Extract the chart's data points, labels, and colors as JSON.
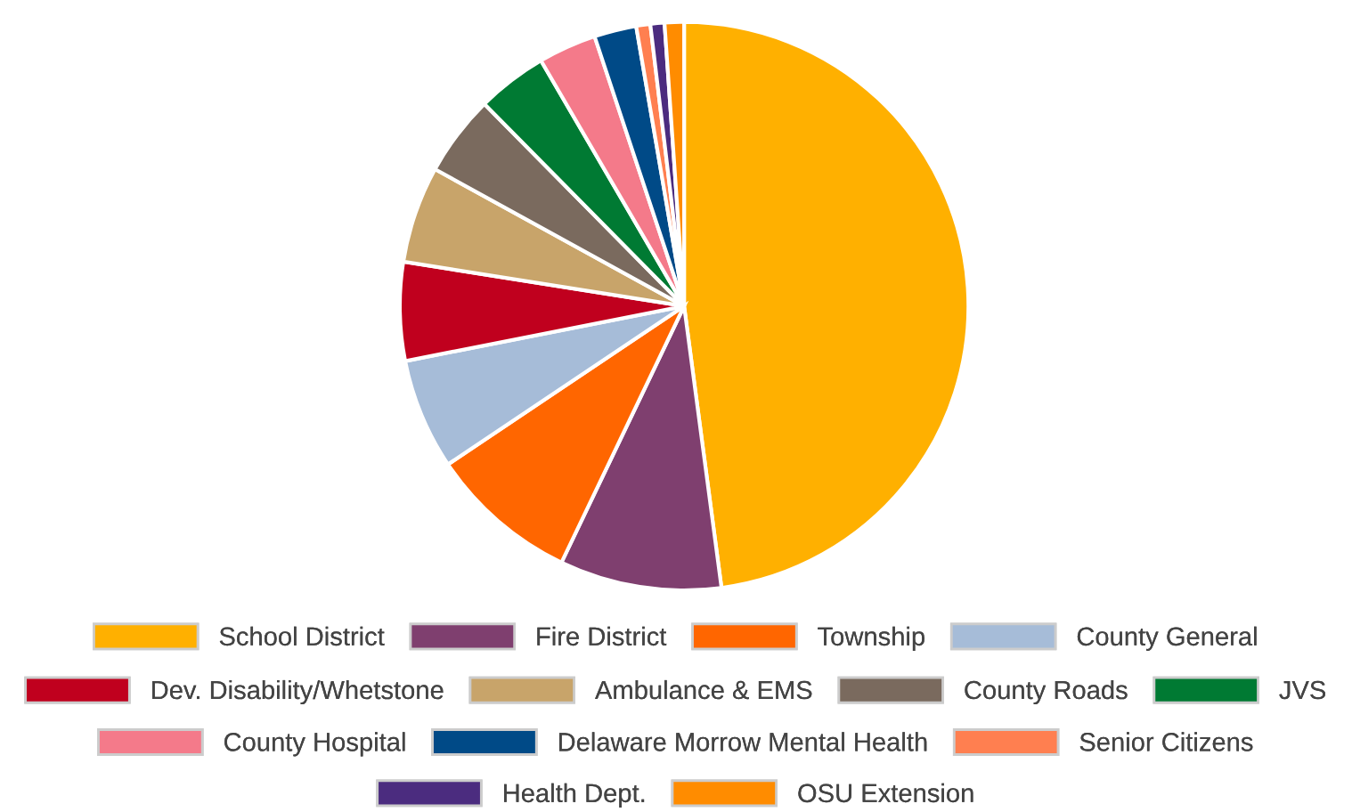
{
  "chart_data": {
    "type": "pie",
    "categories": [
      "School District",
      "Fire District",
      "Township",
      "County General",
      "Dev. Disability/Whetstone",
      "Ambulance & EMS",
      "County Roads",
      "JVS",
      "County Hospital",
      "Delaware Morrow Mental Health",
      "Senior Citizens",
      "Health Dept.",
      "OSU Extension"
    ],
    "values": [
      47.9,
      9.2,
      8.5,
      6.3,
      5.6,
      5.5,
      4.6,
      4.0,
      3.3,
      2.4,
      0.8,
      0.8,
      1.1
    ],
    "colors": [
      "#ffb000",
      "#7f3f6f",
      "#ff6600",
      "#a6bcd8",
      "#c0001e",
      "#c8a46a",
      "#7a6a5e",
      "#007a33",
      "#f47a8a",
      "#004a87",
      "#ff7f50",
      "#4b2c7f",
      "#ff8c00"
    ],
    "legend": "bottom"
  }
}
